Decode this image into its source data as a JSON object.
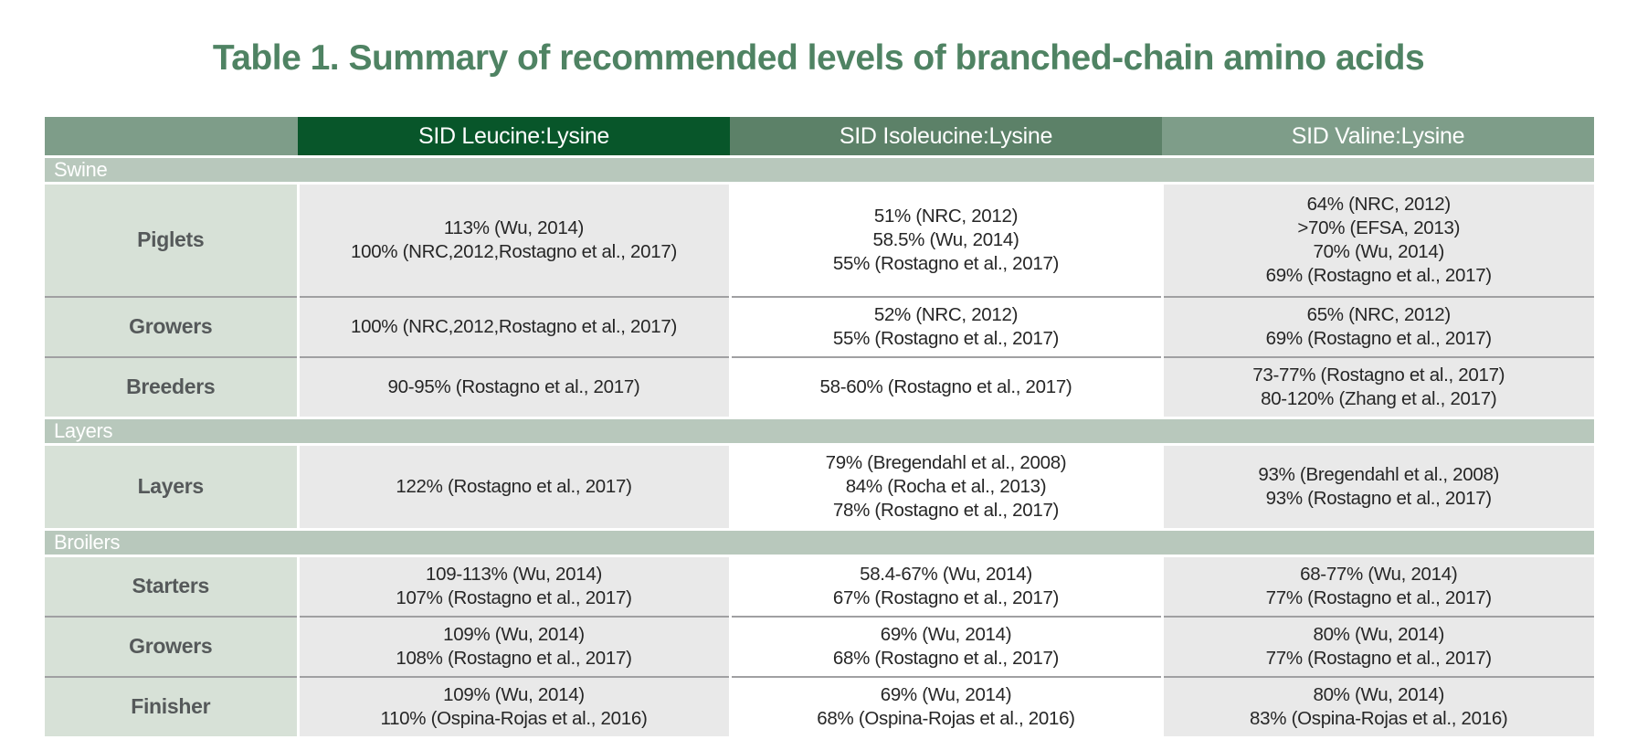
{
  "title": "Table 1. Summary of recommended levels of branched-chain amino acids",
  "table": {
    "columns": [
      "",
      "SID Leucine:Lysine",
      "SID Isoleucine:Lysine",
      "SID Valine:Lysine"
    ],
    "sections": [
      {
        "name": "Swine",
        "rows": [
          {
            "label": "Piglets",
            "leucine": [
              "113% (Wu, 2014)",
              "100% (NRC,2012,Rostagno et al., 2017)"
            ],
            "isoleucine": [
              "51% (NRC, 2012)",
              "58.5% (Wu, 2014)",
              "55% (Rostagno et al., 2017)"
            ],
            "valine": [
              "64% (NRC, 2012)",
              ">70% (EFSA, 2013)",
              "70% (Wu, 2014)",
              "69% (Rostagno et al., 2017)"
            ]
          },
          {
            "label": "Growers",
            "leucine": [
              "100% (NRC,2012,Rostagno et al., 2017)"
            ],
            "isoleucine": [
              "52% (NRC, 2012)",
              "55% (Rostagno et al., 2017)"
            ],
            "valine": [
              "65% (NRC, 2012)",
              "69% (Rostagno et al., 2017)"
            ]
          },
          {
            "label": "Breeders",
            "leucine": [
              "90-95% (Rostagno et al., 2017)"
            ],
            "isoleucine": [
              "58-60% (Rostagno et al., 2017)"
            ],
            "valine": [
              "73-77% (Rostagno et al., 2017)",
              "80-120% (Zhang et al., 2017)"
            ]
          }
        ]
      },
      {
        "name": "Layers",
        "rows": [
          {
            "label": "Layers",
            "leucine": [
              "122% (Rostagno et al., 2017)"
            ],
            "isoleucine": [
              "79% (Bregendahl et al., 2008)",
              "84% (Rocha et al., 2013)",
              "78% (Rostagno et al., 2017)"
            ],
            "valine": [
              "93% (Bregendahl et al., 2008)",
              "93% (Rostagno et al., 2017)"
            ]
          }
        ]
      },
      {
        "name": "Broilers",
        "rows": [
          {
            "label": "Starters",
            "leucine": [
              "109-113% (Wu, 2014)",
              "107% (Rostagno et al., 2017)"
            ],
            "isoleucine": [
              "58.4-67% (Wu, 2014)",
              "67% (Rostagno et al., 2017)"
            ],
            "valine": [
              "68-77% (Wu, 2014)",
              "77% (Rostagno et al., 2017)"
            ]
          },
          {
            "label": "Growers",
            "leucine": [
              "109% (Wu, 2014)",
              "108% (Rostagno et al., 2017)"
            ],
            "isoleucine": [
              "69% (Wu, 2014)",
              "68% (Rostagno et al., 2017)"
            ],
            "valine": [
              "80% (Wu, 2014)",
              "77% (Rostagno et al., 2017)"
            ]
          },
          {
            "label": "Finisher",
            "leucine": [
              "109% (Wu, 2014)",
              "110% (Ospina-Rojas et al., 2016)"
            ],
            "isoleucine": [
              "69% (Wu, 2014)",
              "68% (Ospina-Rojas et al., 2016)"
            ],
            "valine": [
              "80% (Wu, 2014)",
              "83% (Ospina-Rojas et al., 2016)"
            ]
          }
        ]
      }
    ]
  },
  "colors": {
    "title_green": "#4f8363",
    "header_dark_green": "#08562a",
    "header_medium_green": "#5c8168",
    "header_sage": "#7e9d89",
    "section_bar": "#b8c8bc",
    "label_cell": "#d7e1d7",
    "data_cell_gray": "#e9e9e9",
    "data_cell_white": "#ffffff"
  }
}
